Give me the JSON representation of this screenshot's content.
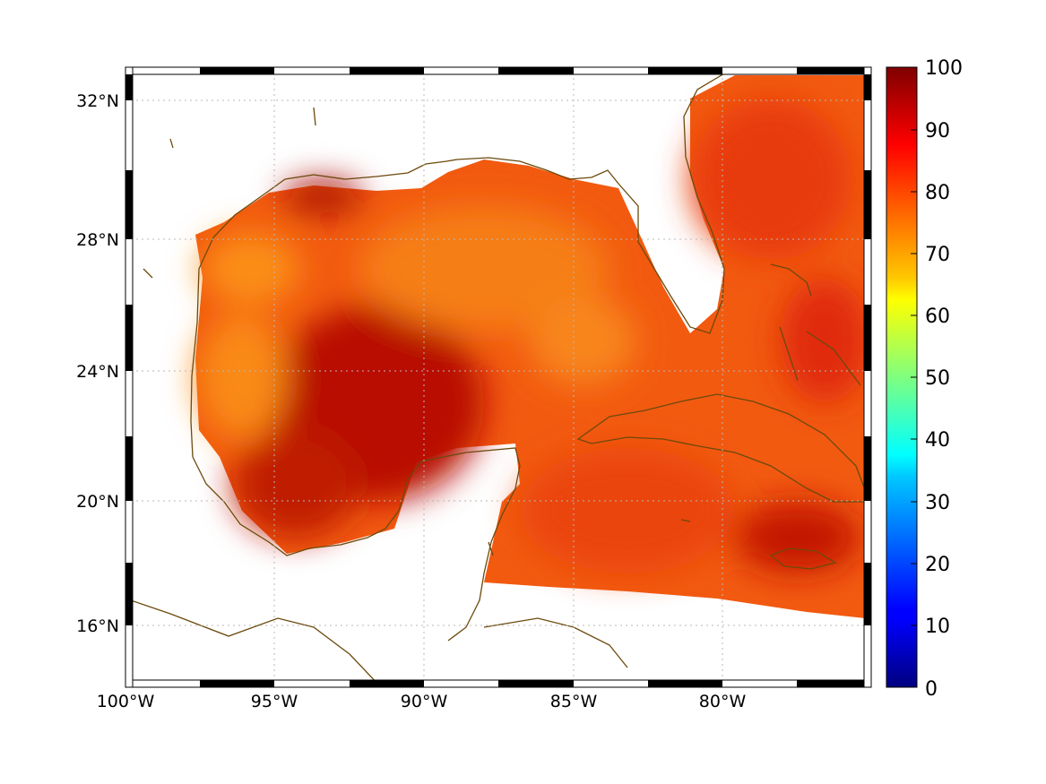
{
  "map": {
    "lat_labels": [
      "32°N",
      "28°N",
      "24°N",
      "20°N",
      "16°N"
    ],
    "lon_labels": [
      "100°W",
      "95°W",
      "90°W",
      "85°W",
      "80°W"
    ],
    "extent": {
      "lon_min": -100,
      "lon_max": -75,
      "lat_min": 14,
      "lat_max": 33
    },
    "grid": true,
    "coast_color": "#6b4a0c"
  },
  "colorbar": {
    "tick_labels": [
      "100",
      "90",
      "80",
      "70",
      "60",
      "50",
      "40",
      "30",
      "20",
      "10",
      "0"
    ],
    "min": 0,
    "max": 100,
    "colormap": "jet"
  }
}
